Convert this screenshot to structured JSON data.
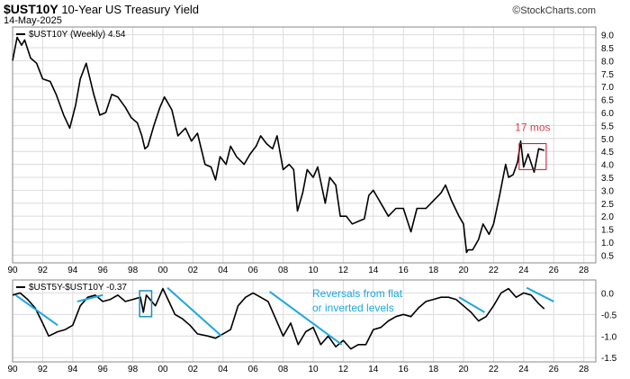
{
  "header": {
    "symbol": "$UST10Y",
    "title": "10-Year US Treasury Yield",
    "date": "14-May-2025",
    "copyright_symbol": "©",
    "brand": "StockCharts.com"
  },
  "colors": {
    "price_line": "#000000",
    "grid": "#dcdcdc",
    "annotation_box": "#c8102e",
    "annotation_text": "#e0404a",
    "trend_lines": "#1ea7dd",
    "spread_box": "#1a8fbf"
  },
  "chart_data": [
    {
      "type": "line",
      "title": "$UST10Y (Weekly) 4.54",
      "legend": "$UST10Y (Weekly) 4.54",
      "x_tick_labels": [
        "90",
        "92",
        "94",
        "96",
        "98",
        "00",
        "02",
        "04",
        "06",
        "08",
        "10",
        "12",
        "14",
        "16",
        "18",
        "20",
        "22",
        "24",
        "26",
        "28"
      ],
      "xlim": [
        1990,
        2028.8
      ],
      "ylim": [
        0.2,
        9.3
      ],
      "y_ticks": [
        0.5,
        1.0,
        1.5,
        2.0,
        2.5,
        3.0,
        3.5,
        4.0,
        4.5,
        5.0,
        5.5,
        6.0,
        6.5,
        7.0,
        7.5,
        8.0,
        8.5,
        9.0
      ],
      "y_tick_labels": [
        "0.5",
        "1.0",
        "1.5",
        "2.0",
        "2.5",
        "3.0",
        "3.5",
        "4.0",
        "4.5",
        "5.0",
        "5.5",
        "6.0",
        "6.5",
        "7.0",
        "7.5",
        "8.0",
        "8.5",
        "9.0"
      ],
      "x": [
        1990.0,
        1990.3,
        1990.6,
        1990.8,
        1991.2,
        1991.6,
        1992.0,
        1992.5,
        1992.9,
        1993.4,
        1993.8,
        1994.2,
        1994.5,
        1994.9,
        1995.4,
        1995.8,
        1996.2,
        1996.6,
        1997.0,
        1997.5,
        1997.9,
        1998.3,
        1998.6,
        1998.8,
        1999.0,
        1999.4,
        1999.8,
        2000.1,
        2000.6,
        2001.0,
        2001.5,
        2001.9,
        2002.3,
        2002.8,
        2003.2,
        2003.5,
        2003.8,
        2004.2,
        2004.5,
        2004.9,
        2005.4,
        2005.8,
        2006.2,
        2006.5,
        2006.9,
        2007.3,
        2007.6,
        2008.0,
        2008.4,
        2008.7,
        2008.95,
        2009.3,
        2009.6,
        2010.0,
        2010.3,
        2010.8,
        2011.1,
        2011.5,
        2011.8,
        2012.2,
        2012.6,
        2013.0,
        2013.4,
        2013.7,
        2014.0,
        2014.5,
        2015.0,
        2015.5,
        2016.0,
        2016.5,
        2016.9,
        2017.5,
        2018.0,
        2018.5,
        2018.8,
        2019.2,
        2019.7,
        2020.0,
        2020.2,
        2020.3,
        2020.6,
        2021.0,
        2021.3,
        2021.7,
        2022.0,
        2022.4,
        2022.8,
        2023.0,
        2023.3,
        2023.6,
        2023.8,
        2024.0,
        2024.3,
        2024.7,
        2025.0,
        2025.37
      ],
      "values": [
        8.0,
        8.9,
        8.6,
        8.8,
        8.1,
        7.9,
        7.3,
        7.2,
        6.7,
        5.9,
        5.4,
        6.3,
        7.3,
        7.9,
        6.7,
        5.9,
        6.0,
        6.7,
        6.6,
        6.2,
        5.8,
        5.6,
        5.1,
        4.6,
        4.7,
        5.5,
        6.2,
        6.6,
        6.1,
        5.1,
        5.4,
        4.9,
        5.2,
        4.0,
        3.9,
        3.4,
        4.3,
        4.0,
        4.7,
        4.3,
        4.0,
        4.4,
        4.7,
        5.1,
        4.8,
        4.6,
        5.1,
        3.8,
        4.0,
        3.8,
        2.2,
        2.9,
        3.8,
        3.5,
        3.9,
        2.5,
        3.5,
        3.2,
        2.0,
        2.0,
        1.7,
        1.8,
        1.9,
        2.8,
        3.0,
        2.5,
        2.0,
        2.3,
        2.3,
        1.4,
        2.3,
        2.3,
        2.6,
        2.9,
        3.2,
        2.6,
        2.0,
        1.7,
        0.6,
        0.7,
        0.7,
        1.1,
        1.7,
        1.3,
        1.7,
        2.8,
        4.0,
        3.5,
        3.6,
        4.1,
        4.9,
        3.9,
        4.4,
        3.7,
        4.6,
        4.54
      ],
      "annotation": {
        "text": "17 mos",
        "x_range": [
          2023.7,
          2025.5
        ],
        "y_range": [
          3.8,
          4.8
        ]
      }
    },
    {
      "type": "line",
      "title": "$UST5Y-$UST10Y -0.37",
      "legend": "$UST5Y-$UST10Y -0.37",
      "x_tick_labels": [
        "90",
        "92",
        "94",
        "96",
        "98",
        "00",
        "02",
        "04",
        "06",
        "08",
        "10",
        "12",
        "14",
        "16",
        "18",
        "20",
        "22",
        "24",
        "26",
        "28"
      ],
      "xlim": [
        1990,
        2028.8
      ],
      "ylim": [
        -1.6,
        0.3
      ],
      "y_ticks": [
        0.0,
        -0.5,
        -1.0,
        -1.5
      ],
      "y_tick_labels": [
        "0.0",
        "-0.5",
        "-1.0",
        "-1.5"
      ],
      "x": [
        1990.0,
        1990.5,
        1991.0,
        1991.5,
        1992.0,
        1992.4,
        1993.0,
        1993.5,
        1994.0,
        1994.5,
        1995.0,
        1995.5,
        1996.0,
        1996.5,
        1997.0,
        1997.5,
        1998.0,
        1998.5,
        1998.7,
        1998.9,
        1999.5,
        2000.0,
        2000.4,
        2000.8,
        2001.3,
        2001.8,
        2002.3,
        2003.0,
        2003.5,
        2004.0,
        2004.5,
        2005.0,
        2005.5,
        2006.0,
        2006.5,
        2007.0,
        2007.5,
        2008.0,
        2008.5,
        2009.0,
        2009.5,
        2010.0,
        2010.5,
        2011.0,
        2011.5,
        2012.0,
        2012.5,
        2013.0,
        2013.5,
        2014.0,
        2014.5,
        2015.0,
        2015.5,
        2016.0,
        2016.5,
        2017.0,
        2017.5,
        2018.0,
        2018.5,
        2019.0,
        2019.5,
        2020.0,
        2020.5,
        2021.0,
        2021.5,
        2022.0,
        2022.5,
        2023.0,
        2023.5,
        2024.0,
        2024.5,
        2025.0,
        2025.37
      ],
      "values": [
        -0.05,
        0.0,
        -0.15,
        -0.35,
        -0.7,
        -1.0,
        -0.9,
        -0.85,
        -0.75,
        -0.3,
        -0.1,
        -0.05,
        -0.2,
        -0.15,
        -0.05,
        -0.2,
        -0.15,
        -0.1,
        -0.45,
        -0.05,
        -0.3,
        0.1,
        -0.2,
        -0.5,
        -0.6,
        -0.75,
        -0.95,
        -1.0,
        -1.05,
        -0.95,
        -0.85,
        -0.3,
        -0.1,
        0.0,
        -0.1,
        -0.2,
        -0.6,
        -1.0,
        -0.7,
        -1.2,
        -0.9,
        -0.8,
        -1.2,
        -1.0,
        -1.25,
        -1.1,
        -1.3,
        -1.2,
        -1.2,
        -0.85,
        -0.8,
        -0.65,
        -0.55,
        -0.5,
        -0.55,
        -0.35,
        -0.2,
        -0.15,
        -0.1,
        -0.1,
        -0.15,
        -0.3,
        -0.45,
        -0.65,
        -0.55,
        -0.3,
        0.0,
        0.1,
        -0.1,
        0.0,
        -0.05,
        -0.25,
        -0.37
      ],
      "annotation": {
        "text_line1": "Reversals from flat",
        "text_line2": "or inverted levels"
      }
    }
  ]
}
